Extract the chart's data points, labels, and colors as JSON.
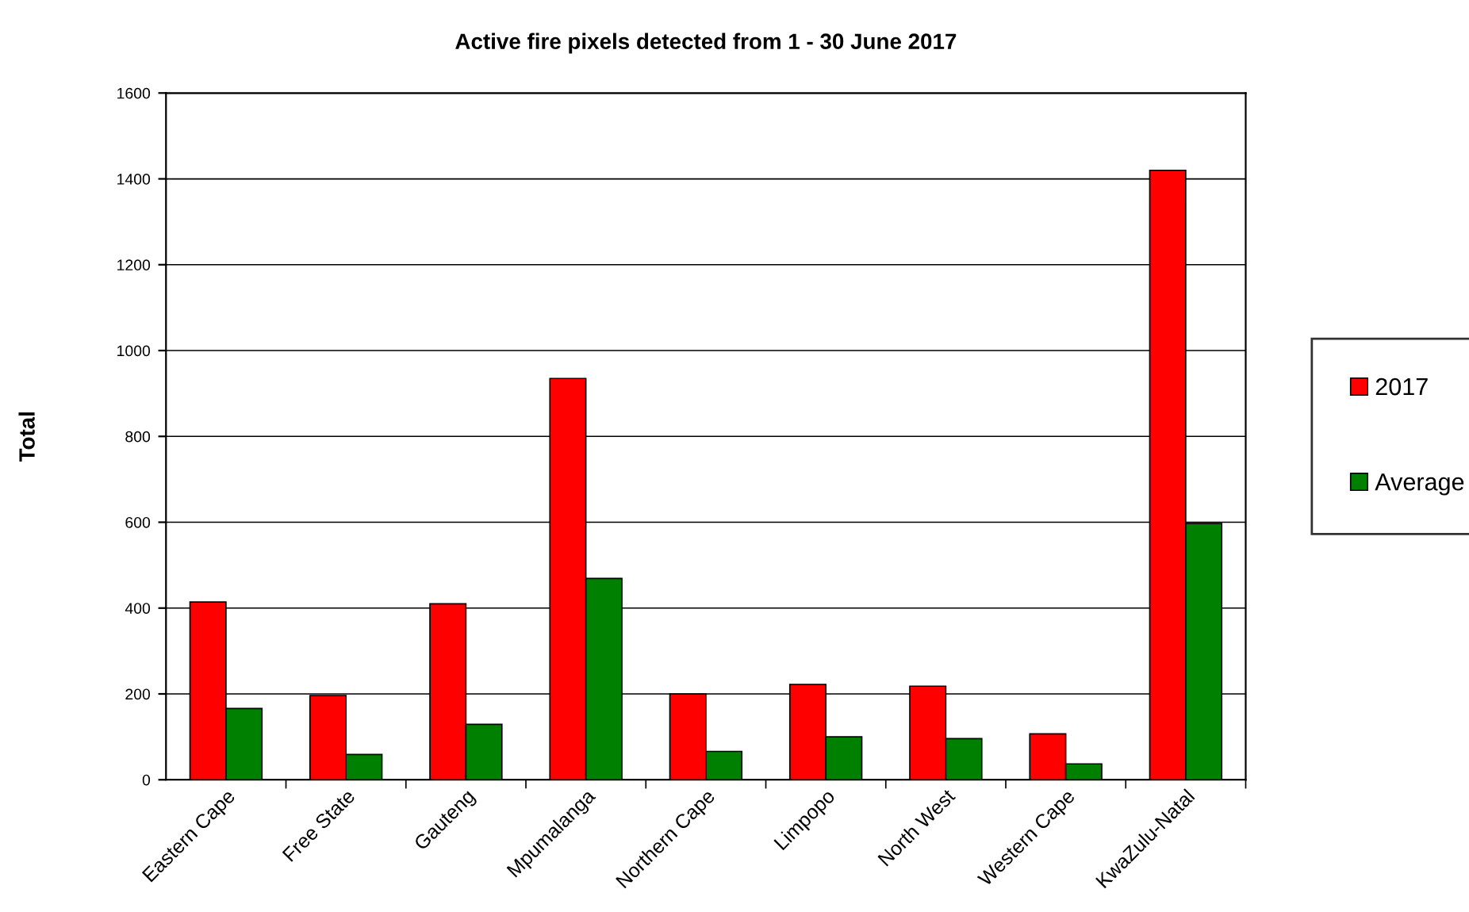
{
  "chart_data": {
    "type": "bar",
    "title": "Active fire pixels detected from 1 - 30 June 2017",
    "ylabel": "Total",
    "categories": [
      "Eastern Cape",
      "Free State",
      "Gauteng",
      "Mpumalanga",
      "Northern Cape",
      "Limpopo",
      "North West",
      "Western Cape",
      "KwaZulu-Natal"
    ],
    "series": [
      {
        "name": "2017",
        "color": "#ff0000",
        "values": [
          414,
          196,
          410,
          935,
          200,
          222,
          218,
          107,
          1420
        ]
      },
      {
        "name": "Average",
        "color": "#008000",
        "values": [
          166,
          59,
          129,
          469,
          66,
          100,
          96,
          37,
          597
        ]
      }
    ],
    "ylim": [
      0,
      1600
    ],
    "yticks": [
      0,
      200,
      400,
      600,
      800,
      1000,
      1200,
      1400,
      1600
    ],
    "grid": "y",
    "legend": "right"
  }
}
